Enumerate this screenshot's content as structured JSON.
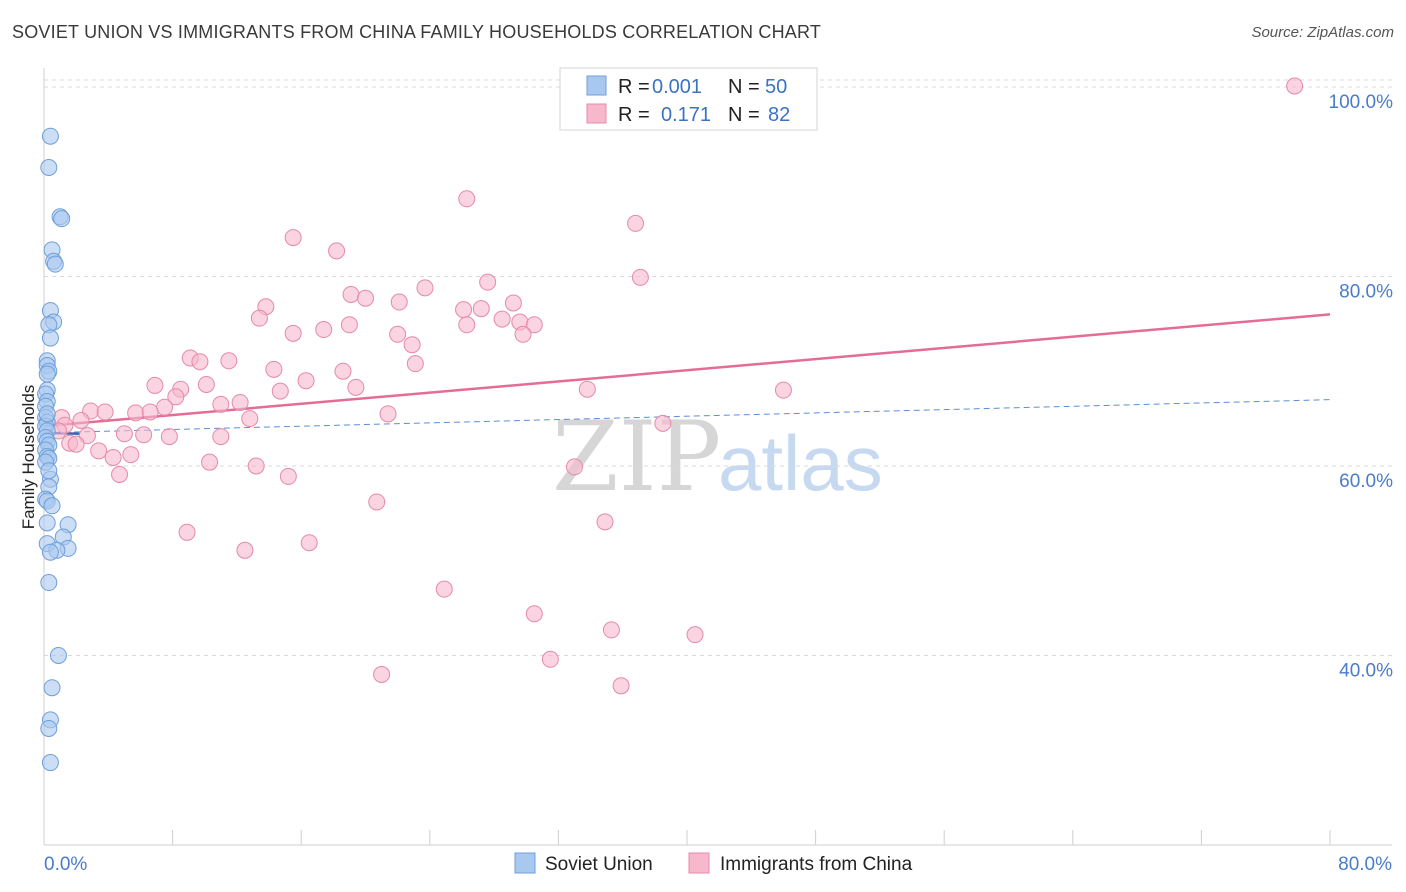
{
  "title": "SOVIET UNION VS IMMIGRANTS FROM CHINA FAMILY HOUSEHOLDS CORRELATION CHART",
  "source": "Source: ZipAtlas.com",
  "watermark": {
    "zip": "ZIP",
    "atlas": "atlas"
  },
  "legend": {
    "series1": {
      "r_label": "R =",
      "r_value": "0.001",
      "n_label": "N =",
      "n_value": "50"
    },
    "series2": {
      "r_label": "R =",
      "r_value": "0.171",
      "n_label": "N =",
      "n_value": "82"
    }
  },
  "bottom_legend": [
    "Soviet Union",
    "Immigrants from China"
  ],
  "colors": {
    "blue_fill": "#a9c8f0",
    "blue_stroke": "#6f9fd8",
    "pink_fill": "#f7b8cb",
    "pink_stroke": "#e58aa8",
    "pink_line": "#e46c97",
    "blue_line": "#5b8fd6",
    "tick_text": "#4a7cc9",
    "grid": "#d9d9d9"
  },
  "chart_data": {
    "type": "scatter",
    "title": "SOVIET UNION VS IMMIGRANTS FROM CHINA FAMILY HOUSEHOLDS CORRELATION CHART",
    "xlabel": "",
    "ylabel": "Family Households",
    "xlim": [
      0,
      80
    ],
    "ylim": [
      20,
      102
    ],
    "x_tick_labels": [
      "0.0%",
      "80.0%"
    ],
    "y_ticks": [
      40,
      60,
      80,
      100
    ],
    "y_tick_labels": [
      "40.0%",
      "60.0%",
      "80.0%",
      "100.0%"
    ],
    "grid": true,
    "series": [
      {
        "name": "Soviet Union",
        "color": "#a9c8f0",
        "trend": {
          "x": [
            0,
            80
          ],
          "y": [
            63.5,
            67.0
          ],
          "style": "dashed"
        },
        "points": [
          [
            0.4,
            94.8
          ],
          [
            0.3,
            91.5
          ],
          [
            1.0,
            86.3
          ],
          [
            1.1,
            86.1
          ],
          [
            0.5,
            82.8
          ],
          [
            0.6,
            81.6
          ],
          [
            0.7,
            81.3
          ],
          [
            0.4,
            76.4
          ],
          [
            0.6,
            75.2
          ],
          [
            0.3,
            74.9
          ],
          [
            0.4,
            73.5
          ],
          [
            0.2,
            71.1
          ],
          [
            0.2,
            70.6
          ],
          [
            0.3,
            70.0
          ],
          [
            0.2,
            69.7
          ],
          [
            0.2,
            68.0
          ],
          [
            0.1,
            67.6
          ],
          [
            0.2,
            66.8
          ],
          [
            0.1,
            66.3
          ],
          [
            0.1,
            65.1
          ],
          [
            0.2,
            64.6
          ],
          [
            0.1,
            64.2
          ],
          [
            0.2,
            63.7
          ],
          [
            0.1,
            63.0
          ],
          [
            0.2,
            62.6
          ],
          [
            0.3,
            62.2
          ],
          [
            0.1,
            61.7
          ],
          [
            0.2,
            61.0
          ],
          [
            0.3,
            60.8
          ],
          [
            0.1,
            60.4
          ],
          [
            0.4,
            58.6
          ],
          [
            0.3,
            57.8
          ],
          [
            0.1,
            56.5
          ],
          [
            0.2,
            56.3
          ],
          [
            0.5,
            55.8
          ],
          [
            1.5,
            53.8
          ],
          [
            1.2,
            52.5
          ],
          [
            0.2,
            51.8
          ],
          [
            1.5,
            51.3
          ],
          [
            0.8,
            51.1
          ],
          [
            0.4,
            50.9
          ],
          [
            0.3,
            47.7
          ],
          [
            0.9,
            40.0
          ],
          [
            0.5,
            36.6
          ],
          [
            0.4,
            33.2
          ],
          [
            0.3,
            32.3
          ],
          [
            0.4,
            28.7
          ],
          [
            0.2,
            65.5
          ],
          [
            0.3,
            59.5
          ],
          [
            0.2,
            54.0
          ]
        ]
      },
      {
        "name": "Immigrants from China",
        "color": "#f7b8cb",
        "trend": {
          "x": [
            0,
            80
          ],
          "y": [
            64.2,
            76.0
          ],
          "style": "solid"
        },
        "points": [
          [
            77.8,
            100.1
          ],
          [
            26.3,
            88.2
          ],
          [
            36.8,
            85.6
          ],
          [
            15.5,
            84.1
          ],
          [
            18.2,
            82.7
          ],
          [
            37.1,
            79.9
          ],
          [
            27.6,
            79.4
          ],
          [
            23.7,
            78.8
          ],
          [
            19.1,
            78.1
          ],
          [
            20.0,
            77.7
          ],
          [
            22.1,
            77.3
          ],
          [
            13.8,
            76.8
          ],
          [
            29.2,
            77.2
          ],
          [
            26.1,
            76.5
          ],
          [
            27.2,
            76.6
          ],
          [
            13.4,
            75.6
          ],
          [
            28.5,
            75.5
          ],
          [
            29.6,
            75.2
          ],
          [
            30.5,
            74.9
          ],
          [
            19.0,
            74.9
          ],
          [
            26.3,
            74.9
          ],
          [
            17.4,
            74.4
          ],
          [
            15.5,
            74.0
          ],
          [
            22.0,
            73.9
          ],
          [
            29.8,
            73.9
          ],
          [
            22.9,
            72.8
          ],
          [
            9.1,
            71.4
          ],
          [
            9.7,
            71.0
          ],
          [
            11.5,
            71.1
          ],
          [
            23.1,
            70.8
          ],
          [
            14.3,
            70.2
          ],
          [
            18.6,
            70.0
          ],
          [
            16.3,
            69.0
          ],
          [
            6.9,
            68.5
          ],
          [
            8.5,
            68.1
          ],
          [
            10.1,
            68.6
          ],
          [
            19.4,
            68.3
          ],
          [
            14.7,
            67.9
          ],
          [
            33.8,
            68.1
          ],
          [
            46.0,
            68.0
          ],
          [
            8.2,
            67.3
          ],
          [
            11.0,
            66.5
          ],
          [
            12.2,
            66.7
          ],
          [
            7.5,
            66.2
          ],
          [
            2.9,
            65.8
          ],
          [
            3.8,
            65.7
          ],
          [
            5.7,
            65.6
          ],
          [
            6.6,
            65.7
          ],
          [
            21.4,
            65.5
          ],
          [
            1.1,
            65.1
          ],
          [
            2.3,
            64.8
          ],
          [
            12.8,
            65.0
          ],
          [
            38.5,
            64.5
          ],
          [
            1.3,
            64.3
          ],
          [
            0.9,
            63.7
          ],
          [
            2.7,
            63.2
          ],
          [
            5.0,
            63.4
          ],
          [
            6.2,
            63.3
          ],
          [
            7.8,
            63.1
          ],
          [
            11.0,
            63.1
          ],
          [
            1.6,
            62.4
          ],
          [
            2.0,
            62.3
          ],
          [
            3.4,
            61.6
          ],
          [
            4.3,
            60.9
          ],
          [
            5.4,
            61.2
          ],
          [
            10.3,
            60.4
          ],
          [
            13.2,
            60.0
          ],
          [
            33.0,
            59.9
          ],
          [
            4.7,
            59.1
          ],
          [
            15.2,
            58.9
          ],
          [
            20.7,
            56.2
          ],
          [
            34.9,
            54.1
          ],
          [
            8.9,
            53.0
          ],
          [
            16.5,
            51.9
          ],
          [
            12.5,
            51.1
          ],
          [
            24.9,
            47.0
          ],
          [
            30.5,
            44.4
          ],
          [
            35.3,
            42.7
          ],
          [
            40.5,
            42.2
          ],
          [
            31.5,
            39.6
          ],
          [
            21.0,
            38.0
          ],
          [
            35.9,
            36.8
          ]
        ]
      }
    ]
  }
}
